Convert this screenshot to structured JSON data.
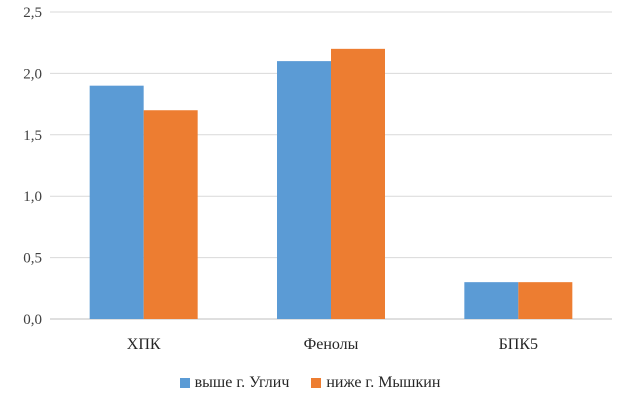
{
  "chart_data": {
    "type": "bar",
    "categories": [
      "ХПК",
      "Фенолы",
      "БПК5"
    ],
    "series": [
      {
        "name": "выше г. Углич",
        "color": "#5B9BD5",
        "values": [
          1.9,
          2.1,
          0.3
        ]
      },
      {
        "name": "ниже г. Мышкин",
        "color": "#ED7D31",
        "values": [
          1.7,
          2.2,
          0.3
        ]
      }
    ],
    "ylim": [
      0,
      2.5
    ],
    "yticks": [
      "0,0",
      "0,5",
      "1,0",
      "1,5",
      "2,0",
      "2,5"
    ],
    "ytick_values": [
      0,
      0.5,
      1.0,
      1.5,
      2.0,
      2.5
    ],
    "grid": true,
    "legend_position": "bottom",
    "title": "",
    "xlabel": "",
    "ylabel": ""
  }
}
